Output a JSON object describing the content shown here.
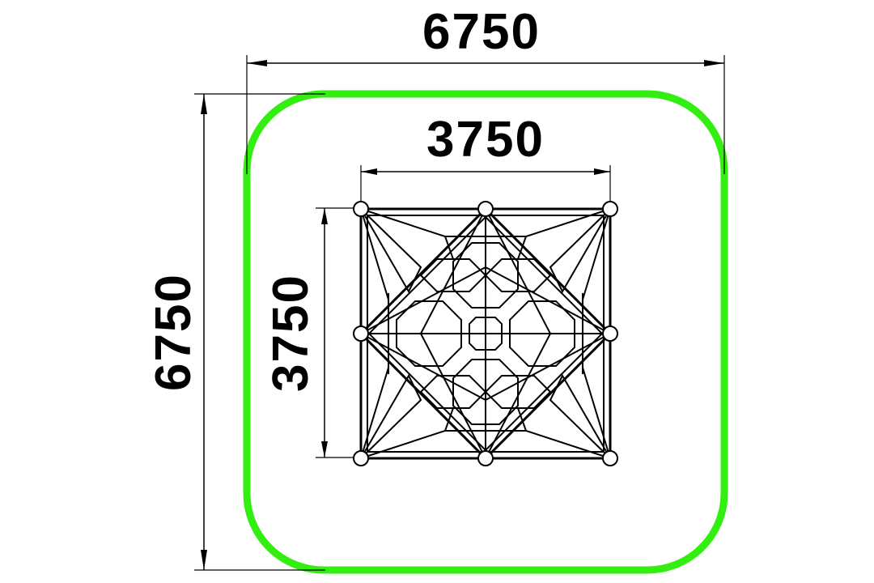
{
  "dimensions": {
    "outer_width": "6750",
    "outer_height": "6750",
    "inner_width": "3750",
    "inner_height": "3750"
  },
  "colors": {
    "safety_zone": "#33ee11",
    "lines": "#000000",
    "background": "#ffffff"
  }
}
